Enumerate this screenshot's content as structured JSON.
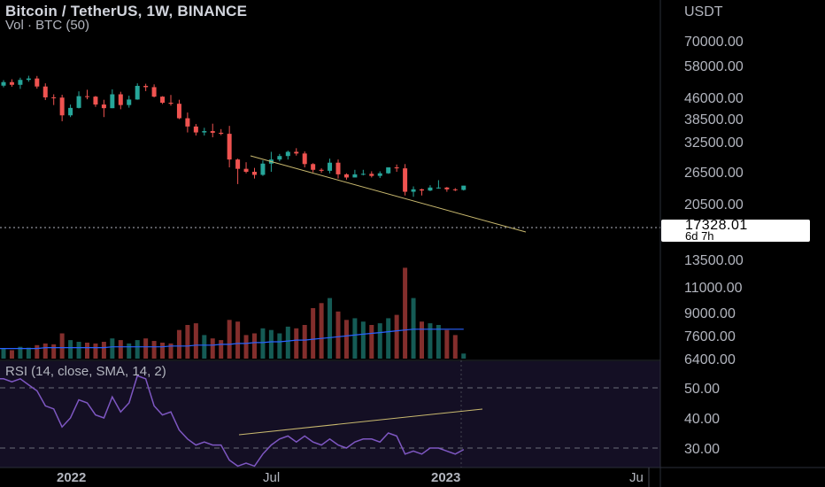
{
  "header": {
    "title": "Bitcoin / TetherUS, 1W, BINANCE",
    "volume_label": "Vol · BTC (50)",
    "rsi_label": "RSI (14, close, SMA, 14, 2)"
  },
  "price_axis": {
    "currency": "USDT",
    "ticks": [
      "70000.00",
      "58000.00",
      "46000.00",
      "38500.00",
      "32500.00",
      "26500.00",
      "20500.00",
      "13500.00",
      "11000.00",
      "9000.00",
      "7600.00",
      "6400.00"
    ]
  },
  "rsi_axis": {
    "ticks": [
      "50.00",
      "40.00",
      "30.00"
    ]
  },
  "time_axis": {
    "ticks": [
      "2022",
      "Jul",
      "2023",
      "Ju"
    ]
  },
  "last_price": {
    "value": "17328.01",
    "countdown": "6d 7h"
  },
  "colors": {
    "up": "#26a69a",
    "down": "#ef5350",
    "volume_ma": "#2962ff",
    "rsi_line": "#7e57c2",
    "trendline": "#c9b96f",
    "background": "#000000"
  },
  "chart_data": [
    {
      "type": "candlestick",
      "symbol": "BTC/USDT",
      "interval": "1W",
      "scale": "log",
      "ylim": [
        6000,
        80000
      ],
      "candles": [
        [
          47100,
          49800,
          46300,
          48800
        ],
        [
          48800,
          50200,
          46600,
          47500
        ],
        [
          47500,
          51000,
          45600,
          49900
        ],
        [
          49900,
          52000,
          49000,
          50600
        ],
        [
          50600,
          51900,
          45700,
          46700
        ],
        [
          46700,
          48200,
          40800,
          41900
        ],
        [
          41900,
          43200,
          38800,
          41800
        ],
        [
          41800,
          43000,
          33000,
          35000
        ],
        [
          35000,
          39000,
          34400,
          37700
        ],
        [
          37700,
          44500,
          37500,
          42400
        ],
        [
          42400,
          45200,
          41100,
          42200
        ],
        [
          42200,
          42500,
          38100,
          39000
        ],
        [
          39000,
          40900,
          34400,
          37600
        ],
        [
          37600,
          45400,
          37600,
          43200
        ],
        [
          43200,
          44300,
          37200,
          38800
        ],
        [
          38800,
          42600,
          37800,
          41000
        ],
        [
          41000,
          48200,
          40900,
          47000
        ],
        [
          47000,
          48000,
          44600,
          46400
        ],
        [
          46400,
          47700,
          41900,
          42200
        ],
        [
          42200,
          42400,
          39200,
          39700
        ],
        [
          39700,
          42900,
          38600,
          39300
        ],
        [
          39300,
          40900,
          33700,
          34000
        ],
        [
          34000,
          36000,
          29500,
          31300
        ],
        [
          31300,
          32100,
          28600,
          29500
        ],
        [
          29500,
          30900,
          28600,
          29900
        ],
        [
          29900,
          32200,
          28100,
          29400
        ],
        [
          29400,
          30500,
          28700,
          29100
        ],
        [
          29100,
          31500,
          20800,
          22500
        ],
        [
          22500,
          22700,
          17600,
          20500
        ],
        [
          20500,
          21900,
          19600,
          19900
        ],
        [
          19900,
          20700,
          18600,
          19300
        ],
        [
          19300,
          22300,
          19100,
          21600
        ],
        [
          21600,
          24300,
          19900,
          22500
        ],
        [
          22500,
          23800,
          22100,
          23300
        ],
        [
          23300,
          24600,
          22500,
          24300
        ],
        [
          24300,
          25200,
          23400,
          23900
        ],
        [
          23900,
          24400,
          20800,
          21500
        ],
        [
          21500,
          21700,
          19800,
          20300
        ],
        [
          20300,
          20600,
          19700,
          20100
        ],
        [
          20100,
          22700,
          19600,
          21800
        ],
        [
          21800,
          22500,
          18600,
          19400
        ],
        [
          19400,
          19600,
          18400,
          18800
        ],
        [
          18800,
          20300,
          18900,
          19400
        ],
        [
          19400,
          20300,
          19200,
          19500
        ],
        [
          19500,
          20000,
          18800,
          19100
        ],
        [
          19100,
          20000,
          18700,
          19600
        ],
        [
          19600,
          20800,
          19500,
          20800
        ],
        [
          20800,
          21400,
          19900,
          20600
        ],
        [
          20600,
          21500,
          15700,
          16300
        ],
        [
          16300,
          17200,
          15500,
          16700
        ],
        [
          16700,
          16800,
          15700,
          16500
        ],
        [
          16500,
          17400,
          16400,
          17000
        ],
        [
          17000,
          18300,
          16800,
          17000
        ],
        [
          17000,
          17100,
          16300,
          16700
        ],
        [
          16700,
          16900,
          16400,
          16600
        ],
        [
          16600,
          17300,
          16500,
          17328
        ]
      ]
    },
    {
      "type": "bar",
      "name": "Volume",
      "ma_period": 50,
      "values": [
        12,
        10,
        14,
        13,
        16,
        18,
        17,
        30,
        22,
        20,
        19,
        18,
        20,
        24,
        22,
        18,
        22,
        24,
        21,
        19,
        18,
        34,
        40,
        42,
        28,
        24,
        22,
        46,
        44,
        28,
        30,
        36,
        34,
        30,
        38,
        36,
        40,
        60,
        66,
        72,
        56,
        46,
        48,
        44,
        40,
        42,
        48,
        52,
        108,
        72,
        44,
        42,
        40,
        34,
        28,
        6
      ],
      "ma_values": [
        12,
        12,
        12,
        12,
        12,
        13,
        13,
        13,
        13,
        13,
        13,
        13,
        13,
        14,
        14,
        14,
        14,
        14,
        14,
        14,
        15,
        15,
        15,
        16,
        16,
        16,
        17,
        17,
        18,
        18,
        19,
        19,
        20,
        20,
        21,
        22,
        22,
        23,
        24,
        25,
        26,
        27,
        28,
        29,
        30,
        31,
        32,
        33,
        34,
        35,
        35,
        35,
        35,
        35,
        35,
        35
      ]
    },
    {
      "type": "line",
      "name": "RSI",
      "ylim": [
        25,
        55
      ],
      "values": [
        53,
        52,
        53,
        51,
        49,
        44,
        43,
        37,
        40,
        46,
        45,
        41,
        40,
        47,
        42,
        45,
        54,
        53,
        44,
        41,
        42,
        36,
        33,
        31,
        32,
        31,
        31,
        26,
        24,
        25,
        24,
        28,
        31,
        33,
        34,
        32,
        34,
        32,
        31,
        33,
        31,
        30,
        32,
        33,
        33,
        32,
        35,
        34,
        28,
        29,
        28,
        30,
        30,
        29,
        28,
        29.5
      ],
      "levels": [
        50,
        30
      ]
    }
  ]
}
